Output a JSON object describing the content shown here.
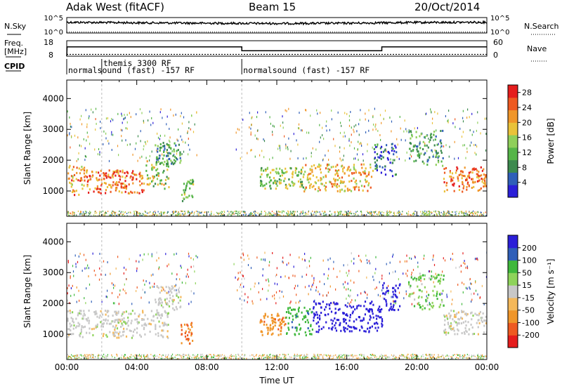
{
  "header": {
    "station": "Adak West (fitACF)",
    "beam": "Beam 15",
    "date": "20/Oct/2014"
  },
  "panel_labels": {
    "nsky": "N.Sky",
    "nsearch": "N.Search",
    "freq": "Freq.",
    "freq_unit": "[MHz]",
    "nave": "Nave",
    "cpid": "CPID"
  },
  "noise_ticks": {
    "top": "10^5",
    "bottom": "10^0"
  },
  "freq_ticks": [
    "18",
    "8"
  ],
  "nave_ticks": [
    "60",
    "0"
  ],
  "cpid_segments": [
    {
      "label": "normalsound (fast) -157 RF",
      "start_h": 0.0
    },
    {
      "label": "themis 3300 RF",
      "start_h": 2.0
    },
    {
      "label": "normalsound (fast) -157 RF",
      "start_h": 10.0
    }
  ],
  "x_axis": {
    "label": "Time UT",
    "ticks": [
      "00:00",
      "04:00",
      "08:00",
      "12:00",
      "16:00",
      "20:00",
      "00:00"
    ],
    "range_h": [
      0,
      24
    ]
  },
  "power_panel": {
    "ylabel": "Slant Range [km]",
    "yticks": [
      "1000",
      "2000",
      "3000",
      "4000"
    ],
    "cbar_label": "Power [dB]",
    "cbar_ticks": [
      "4",
      "8",
      "12",
      "16",
      "20",
      "24",
      "28"
    ]
  },
  "velocity_panel": {
    "ylabel": "Slant Range [km]",
    "yticks": [
      "1000",
      "2000",
      "3000",
      "4000"
    ],
    "cbar_label": "Velocity [m s⁻¹]",
    "cbar_ticks": [
      "200",
      "100",
      "50",
      "15",
      "-15",
      "-50",
      "-100",
      "-200"
    ]
  },
  "chart_data": [
    {
      "type": "line",
      "title": "N.Sky / N.Search noise",
      "x_range_h": [
        0,
        24
      ],
      "y_scale": "log",
      "ylim": [
        1,
        100000
      ],
      "series": [
        {
          "name": "N.Sky",
          "x_h": [
            0,
            4,
            8,
            12,
            16,
            20,
            24
          ],
          "values": [
            3000,
            2000,
            1500,
            1200,
            1500,
            2500,
            3000
          ]
        },
        {
          "name": "N.Search",
          "x_h": [
            0,
            4,
            8,
            12,
            16,
            20,
            24
          ],
          "values": [
            2,
            2,
            2,
            2,
            2,
            2,
            2
          ]
        }
      ]
    },
    {
      "type": "line",
      "title": "Freq. / Nave",
      "freq_ylim": [
        8,
        18
      ],
      "nave_ylim": [
        0,
        60
      ],
      "series": [
        {
          "name": "Freq.",
          "x_h": [
            0.02,
            10.0,
            10.0,
            18.0,
            18.0,
            24.0
          ],
          "values": [
            14,
            14,
            11.5,
            11.5,
            14,
            14
          ]
        },
        {
          "name": "Nave",
          "x_h": [
            0,
            24
          ],
          "values": [
            7,
            7
          ]
        }
      ]
    },
    {
      "type": "heatmap",
      "title": "Power [dB]",
      "x_label": "Time UT",
      "y_label": "Slant Range [km]",
      "x_range_h": [
        0,
        24
      ],
      "y_range_km": [
        180,
        4600
      ],
      "value_range_db": [
        0,
        30
      ],
      "echo_regions": [
        {
          "t0": 0.0,
          "t1": 1.0,
          "r0": 900,
          "r1": 1850,
          "power_db": 22
        },
        {
          "t0": 1.0,
          "t1": 4.5,
          "r0": 950,
          "r1": 1700,
          "power_db": 24
        },
        {
          "t0": 4.5,
          "t1": 5.8,
          "r0": 1100,
          "r1": 2000,
          "power_db": 15
        },
        {
          "t0": 5.0,
          "t1": 6.5,
          "r0": 1900,
          "r1": 2600,
          "power_db": 10
        },
        {
          "t0": 6.5,
          "t1": 7.2,
          "r0": 700,
          "r1": 1400,
          "power_db": 12
        },
        {
          "t0": 11.0,
          "t1": 13.5,
          "r0": 1100,
          "r1": 1800,
          "power_db": 14
        },
        {
          "t0": 13.5,
          "t1": 17.5,
          "r0": 1000,
          "r1": 1900,
          "power_db": 20
        },
        {
          "t0": 17.5,
          "t1": 18.8,
          "r0": 1500,
          "r1": 2600,
          "power_db": 6
        },
        {
          "t0": 19.5,
          "t1": 21.5,
          "r0": 1800,
          "r1": 3000,
          "power_db": 10
        },
        {
          "t0": 21.5,
          "t1": 24.0,
          "r0": 1000,
          "r1": 1800,
          "power_db": 24
        }
      ]
    },
    {
      "type": "heatmap",
      "title": "Velocity [m s⁻¹]",
      "x_label": "Time UT",
      "y_label": "Slant Range [km]",
      "x_range_h": [
        0,
        24
      ],
      "y_range_km": [
        180,
        4600
      ],
      "value_range_ms": [
        -200,
        200
      ],
      "echo_regions": [
        {
          "t0": 0.0,
          "t1": 5.8,
          "r0": 900,
          "r1": 1800,
          "velocity_ms": 0
        },
        {
          "t0": 5.0,
          "t1": 6.5,
          "r0": 1800,
          "r1": 2600,
          "velocity_ms": 0
        },
        {
          "t0": 6.5,
          "t1": 7.2,
          "r0": 700,
          "r1": 1400,
          "velocity_ms": -80
        },
        {
          "t0": 11.0,
          "t1": 12.5,
          "r0": 1000,
          "r1": 1700,
          "velocity_ms": -60
        },
        {
          "t0": 12.5,
          "t1": 14.0,
          "r0": 1000,
          "r1": 1900,
          "velocity_ms": 60
        },
        {
          "t0": 14.0,
          "t1": 18.0,
          "r0": 1100,
          "r1": 2100,
          "velocity_ms": 180
        },
        {
          "t0": 18.0,
          "t1": 19.0,
          "r0": 1800,
          "r1": 2700,
          "velocity_ms": 180
        },
        {
          "t0": 19.5,
          "t1": 21.5,
          "r0": 1800,
          "r1": 3000,
          "velocity_ms": 30
        },
        {
          "t0": 21.5,
          "t1": 24.0,
          "r0": 1000,
          "r1": 1800,
          "velocity_ms": 0
        }
      ]
    }
  ]
}
